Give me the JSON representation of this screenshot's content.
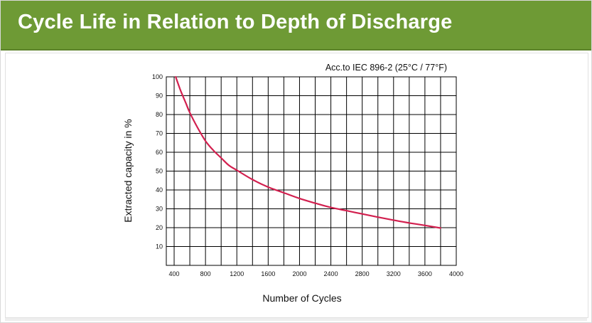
{
  "header": {
    "title": "Cycle Life in Relation to Depth of Discharge"
  },
  "chart_data": {
    "type": "line",
    "annotation": "Acc.to IEC 896-2 (25°C / 77°F)",
    "xlabel": "Number of Cycles",
    "ylabel": "Extracted capacity in %",
    "xlim": [
      300,
      4000
    ],
    "ylim": [
      0,
      100
    ],
    "x_ticks": [
      400,
      600,
      800,
      1000,
      1200,
      1400,
      1600,
      1800,
      2000,
      2200,
      2400,
      2600,
      2800,
      3000,
      3200,
      3400,
      3600,
      3800,
      4000
    ],
    "x_tick_labels": [
      "400",
      "800",
      "1200",
      "1600",
      "2000",
      "2400",
      "2800",
      "3200",
      "3600",
      "4000"
    ],
    "x_tick_label_values": [
      400,
      800,
      1200,
      1600,
      2000,
      2400,
      2800,
      3200,
      3600,
      4000
    ],
    "y_ticks": [
      10,
      20,
      30,
      40,
      50,
      60,
      70,
      80,
      90,
      100
    ],
    "y_tick_labels": [
      "10",
      "20",
      "30",
      "40",
      "50",
      "60",
      "70",
      "80",
      "90",
      "100"
    ],
    "grid": true,
    "series": [
      {
        "name": "Cycle life",
        "color": "#d2204f",
        "x": [
          420,
          480,
          550,
          600,
          700,
          800,
          900,
          1000,
          1100,
          1200,
          1400,
          1600,
          1800,
          2000,
          2200,
          2400,
          2600,
          2800,
          3000,
          3200,
          3400,
          3600,
          3800
        ],
        "y": [
          100,
          93,
          86,
          81,
          73,
          66,
          61,
          57,
          53,
          50.5,
          45.5,
          41.5,
          38.5,
          35.5,
          33,
          30.7,
          29,
          27.3,
          25.6,
          24,
          22.5,
          21.2,
          19.8
        ]
      }
    ]
  },
  "colors": {
    "header_bg": "#6e9a35",
    "grid": "#000000",
    "curve": "#d2204f"
  }
}
